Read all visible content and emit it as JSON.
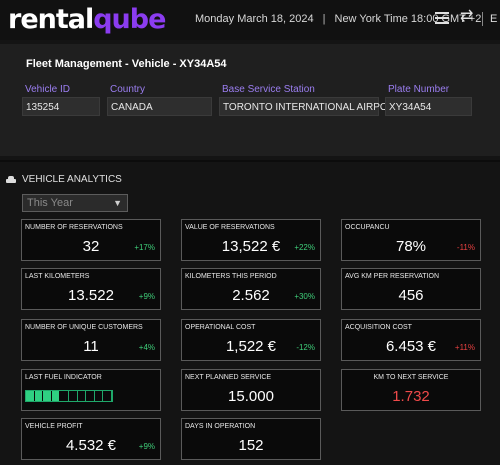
{
  "header": {
    "logo_a": "rental",
    "logo_b": "qube",
    "date": "Monday March 18, 2024",
    "sep": "|",
    "time": "New York Time 18:00  GMT +2",
    "lang": "E"
  },
  "fleet": {
    "title": "Fleet Management - Vehicle - XY34A54",
    "fields": [
      {
        "label": "Vehicle ID",
        "value": "135254"
      },
      {
        "label": "Country",
        "value": "CANADA"
      },
      {
        "label": "Base Service Station",
        "value": "TORONTO INTERNATIONAL AIRPORT"
      },
      {
        "label": "Plate Number",
        "value": "XY34A54"
      }
    ]
  },
  "analytics": {
    "heading": "VEHICLE ANALYTICS",
    "period": "This Year",
    "cards": [
      {
        "label": "NUMBER OF RESERVATIONS",
        "value": "32",
        "change": "+17%"
      },
      {
        "label": "VALUE OF RESERVATIONS",
        "value": "13,522 €",
        "change": "+22%"
      },
      {
        "label": "OCCUPANCU",
        "value": "78%",
        "change": "-11%"
      },
      {
        "label": "LAST KILOMETERS",
        "value": "13.522",
        "change": "+9%"
      },
      {
        "label": "KILOMETERS THIS PERIOD",
        "value": "2.562",
        "change": "+30%"
      },
      {
        "label": "AVG KM PER RESERVATION",
        "value": "456",
        "change": ""
      },
      {
        "label": "NUMBER OF UNIQUE CUSTOMERS",
        "value": "11",
        "change": "+4%"
      },
      {
        "label": "OPERATIONAL COST",
        "value": "1,522 €",
        "change": "-12%"
      },
      {
        "label": "ACQUISITION COST",
        "value": "6.453 €",
        "change": "+11%"
      },
      {
        "label": "LAST FUEL INDICATOR",
        "fuel_level": 0.4,
        "fuel_segments": 10
      },
      {
        "label": "NEXT PLANNED SERVICE",
        "value": "15.000",
        "change": ""
      },
      {
        "label": "KM TO NEXT SERVICE",
        "value": "1.732",
        "change": ""
      },
      {
        "label": "VEHICLE PROFIT",
        "value": "4.532 €",
        "change": "+9%"
      },
      {
        "label": "DAYS IN OPERATION",
        "value": "152",
        "change": ""
      }
    ]
  },
  "colors": {
    "accent": "#8b3cf0",
    "positive": "#3fcf7a",
    "negative": "#e84141",
    "fuel": "#2fd082"
  }
}
